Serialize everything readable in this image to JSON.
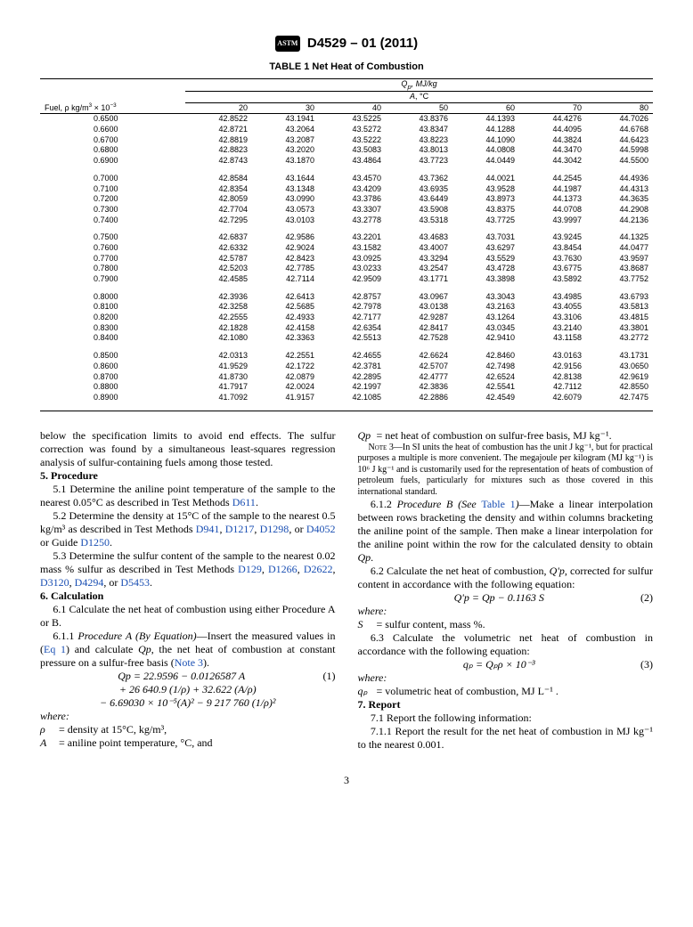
{
  "header": {
    "logo": "ASTM",
    "doc_id": "D4529 – 01 (2011)"
  },
  "table": {
    "title": "TABLE 1 Net Heat of Combustion",
    "super_header": "Q_p, MJ/kg",
    "sub_header": "A, °C",
    "fuel_label_html": "Fuel, ρ kg/m³ × 10⁻³",
    "cols": [
      "20",
      "30",
      "40",
      "50",
      "60",
      "70",
      "80"
    ],
    "groups": [
      [
        [
          "0.6500",
          "42.8522",
          "43.1941",
          "43.5225",
          "43.8376",
          "44.1393",
          "44.4276",
          "44.7026"
        ],
        [
          "0.6600",
          "42.8721",
          "43.2064",
          "43.5272",
          "43.8347",
          "44.1288",
          "44.4095",
          "44.6768"
        ],
        [
          "0.6700",
          "42.8819",
          "43.2087",
          "43.5222",
          "43.8223",
          "44.1090",
          "44.3824",
          "44.6423"
        ],
        [
          "0.6800",
          "42.8823",
          "43.2020",
          "43.5083",
          "43.8013",
          "44.0808",
          "44.3470",
          "44.5998"
        ],
        [
          "0.6900",
          "42.8743",
          "43.1870",
          "43.4864",
          "43.7723",
          "44.0449",
          "44.3042",
          "44.5500"
        ]
      ],
      [
        [
          "0.7000",
          "42.8584",
          "43.1644",
          "43.4570",
          "43.7362",
          "44.0021",
          "44.2545",
          "44.4936"
        ],
        [
          "0.7100",
          "42.8354",
          "43.1348",
          "43.4209",
          "43.6935",
          "43.9528",
          "44.1987",
          "44.4313"
        ],
        [
          "0.7200",
          "42.8059",
          "43.0990",
          "43.3786",
          "43.6449",
          "43.8973",
          "44.1373",
          "44.3635"
        ],
        [
          "0.7300",
          "42.7704",
          "43.0573",
          "43.3307",
          "43.5908",
          "43.8375",
          "44.0708",
          "44.2908"
        ],
        [
          "0.7400",
          "42.7295",
          "43.0103",
          "43.2778",
          "43.5318",
          "43.7725",
          "43.9997",
          "44.2136"
        ]
      ],
      [
        [
          "0.7500",
          "42.6837",
          "42.9586",
          "43.2201",
          "43.4683",
          "43.7031",
          "43.9245",
          "44.1325"
        ],
        [
          "0.7600",
          "42.6332",
          "42.9024",
          "43.1582",
          "43.4007",
          "43.6297",
          "43.8454",
          "44.0477"
        ],
        [
          "0.7700",
          "42.5787",
          "42.8423",
          "43.0925",
          "43.3294",
          "43.5529",
          "43.7630",
          "43.9597"
        ],
        [
          "0.7800",
          "42.5203",
          "42.7785",
          "43.0233",
          "43.2547",
          "43.4728",
          "43.6775",
          "43.8687"
        ],
        [
          "0.7900",
          "42.4585",
          "42.7114",
          "42.9509",
          "43.1771",
          "43.3898",
          "43.5892",
          "43.7752"
        ]
      ],
      [
        [
          "0.8000",
          "42.3936",
          "42.6413",
          "42.8757",
          "43.0967",
          "43.3043",
          "43.4985",
          "43.6793"
        ],
        [
          "0.8100",
          "42.3258",
          "42.5685",
          "42.7978",
          "43.0138",
          "43.2163",
          "43.4055",
          "43.5813"
        ],
        [
          "0.8200",
          "42.2555",
          "42.4933",
          "42.7177",
          "42.9287",
          "43.1264",
          "43.3106",
          "43.4815"
        ],
        [
          "0.8300",
          "42.1828",
          "42.4158",
          "42.6354",
          "42.8417",
          "43.0345",
          "43.2140",
          "43.3801"
        ],
        [
          "0.8400",
          "42.1080",
          "42.3363",
          "42.5513",
          "42.7528",
          "42.9410",
          "43.1158",
          "43.2772"
        ]
      ],
      [
        [
          "0.8500",
          "42.0313",
          "42.2551",
          "42.4655",
          "42.6624",
          "42.8460",
          "43.0163",
          "43.1731"
        ],
        [
          "0.8600",
          "41.9529",
          "42.1722",
          "42.3781",
          "42.5707",
          "42.7498",
          "42.9156",
          "43.0650"
        ],
        [
          "0.8700",
          "41.8730",
          "42.0879",
          "42.2895",
          "42.4777",
          "42.6524",
          "42.8138",
          "42.9619"
        ],
        [
          "0.8800",
          "41.7917",
          "42.0024",
          "42.1997",
          "42.3836",
          "42.5541",
          "42.7112",
          "42.8550"
        ],
        [
          "0.8900",
          "41.7092",
          "41.9157",
          "42.1085",
          "42.2886",
          "42.4549",
          "42.6079",
          "42.7475"
        ]
      ]
    ]
  },
  "body": {
    "intro": "below the specification limits to avoid end effects. The sulfur correction was found by a simultaneous least-squares regression analysis of sulfur-containing fuels among those tested.",
    "s5": "5. Procedure",
    "p51a": "5.1 Determine the aniline point temperature of the sample to the nearest 0.05°C as described in Test Methods ",
    "d611": "D611",
    "p52a": "5.2 Determine the density at 15°C of the sample to the nearest 0.5 kg/m³ as described in Test Methods ",
    "d941": "D941",
    "d1217": "D1217",
    "d1298": "D1298",
    "d4052": "D4052",
    "d1250": "D1250",
    "p53a": "5.3 Determine the sulfur content of the sample to the nearest 0.02 mass % sulfur as described in Test Methods ",
    "d129": "D129",
    "d1266": "D1266",
    "d2622": "D2622",
    "d3120": "D3120",
    "d4294": "D4294",
    "d5453": "D5453",
    "s6": "6. Calculation",
    "p61": "6.1 Calculate the net heat of combustion using either Procedure A or B.",
    "p611a": "6.1.1 ",
    "p611i": "Procedure A (By Equation)",
    "p611b": "—Insert the measured values in (",
    "eq1ref": "Eq 1",
    "p611c": ") and calculate ",
    "qp": "Qp",
    "p611d": ", the net heat of combustion at constant pressure on a sulfur-free basis (",
    "note3": "Note 3",
    "p611e": ").",
    "eq1a": "Qp = 22.9596 − 0.0126587 A",
    "eq1n": "(1)",
    "eq1b": "+ 26 640.9 (1/ρ) + 32.622 (A/ρ)",
    "eq1c": "− 6.69030 × 10⁻⁵(A)² − 9   217   760 (1/ρ)²",
    "where": "where:",
    "rho_def": "= density at 15°C, kg/m³,",
    "a_def": "= aniline point temperature, °C, and",
    "qp_def": "= net heat of combustion on sulfur-free basis, MJ kg⁻¹.",
    "note3_label": "Note 3",
    "note3_text": "—In SI units the heat of combustion has the unit J kg⁻¹, but for practical purposes a multiple is more convenient. The megajoule per kilogram (MJ kg⁻¹) is 10⁶ J kg⁻¹ and is customarily used for the representation of heats of combustion of petroleum fuels, particularly for mixtures such as those covered in this international standard.",
    "p612a": "6.1.2 ",
    "p612i": "Procedure B (See ",
    "table1ref": "Table 1",
    "p612b": ")",
    "p612c": "—Make a linear interpolation between rows bracketing the density and within columns bracketing the aniline point of the sample. Then make a linear interpolation for the aniline point within the row for the calculated density to obtain ",
    "p62a": "6.2 Calculate the net heat of combustion, ",
    "q_p_prime": "Q'p",
    "p62b": ", corrected for sulfur content in accordance with the following equation:",
    "eq2": "Q'p = Qp − 0.1163 S",
    "eq2n": "(2)",
    "s_def": "= sulfur content, mass %.",
    "p63": "6.3 Calculate the volumetric net heat of combustion in accordance with the following equation:",
    "eq3": "qₚ = Qₚρ × 10⁻³",
    "eq3n": "(3)",
    "qp_small": "qₚ",
    "qpv_def": "= volumetric heat of combustion, MJ L⁻¹ .",
    "s7": "7. Report",
    "p71": "7.1 Report the following information:",
    "p711": "7.1.1 Report the result for the net heat of combustion in MJ kg⁻¹ to the nearest 0.001."
  },
  "pagenum": "3"
}
